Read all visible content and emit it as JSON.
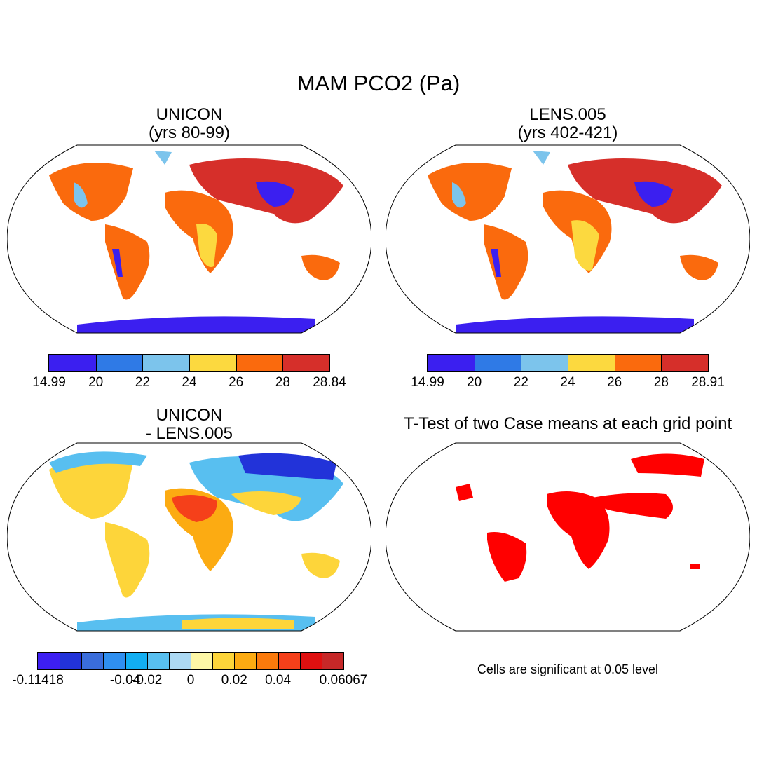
{
  "title": "MAM PCO2 (Pa)",
  "panels": [
    {
      "id": "p1",
      "title_line1": "UNICON",
      "title_line2": "(yrs 80-99)"
    },
    {
      "id": "p2",
      "title_line1": "LENS.005",
      "title_line2": "(yrs 402-421)"
    },
    {
      "id": "p3",
      "title_line1": "UNICON",
      "title_line2": "- LENS.005"
    },
    {
      "id": "p4",
      "title_line1": "T-Test of two Case means at each grid point"
    }
  ],
  "colorbars": [
    {
      "id": "cb1",
      "colors": [
        "#3b1ff0",
        "#2f7ae6",
        "#7cc4ec",
        "#fcd93f",
        "#fa6a0d",
        "#d62f2a"
      ],
      "labels": [
        "14.99",
        "20",
        "22",
        "24",
        "26",
        "28",
        "28.84"
      ]
    },
    {
      "id": "cb2",
      "colors": [
        "#3b1ff0",
        "#2f7ae6",
        "#7cc4ec",
        "#fcd93f",
        "#fa6a0d",
        "#d62f2a"
      ],
      "labels": [
        "14.99",
        "20",
        "22",
        "24",
        "26",
        "28",
        "28.91"
      ]
    },
    {
      "id": "cb3",
      "colors": [
        "#3d1ff2",
        "#2233d9",
        "#3a6ddb",
        "#2f8ff0",
        "#12aef2",
        "#58bff0",
        "#acd9f3",
        "#fdf7a6",
        "#fdd53a",
        "#fcab12",
        "#fb7a0c",
        "#f5401a",
        "#df1010",
        "#c62828"
      ],
      "labels": [
        "-0.11418",
        "-0.04",
        "-0.02",
        "0",
        "0.02",
        "0.04",
        "0.06067"
      ],
      "label_edges": [
        0,
        4,
        5,
        7,
        9,
        11,
        14
      ]
    }
  ],
  "note": "Cells are significant at 0.05 level"
}
